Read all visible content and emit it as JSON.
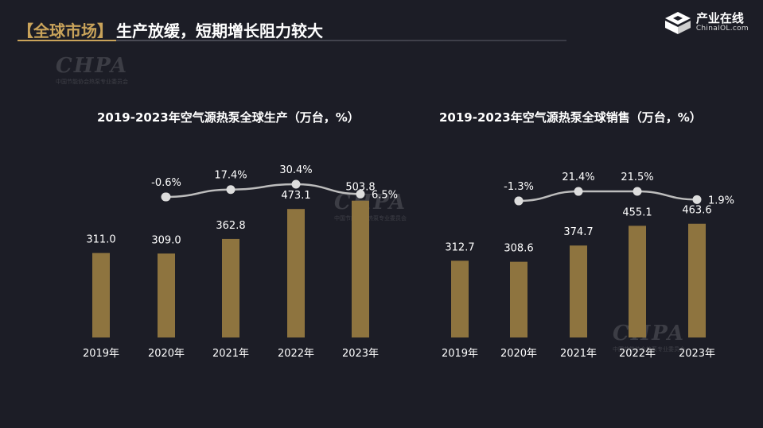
{
  "header": {
    "tag": "【全球市场】",
    "title": "生产放缓，短期增长阻力较大"
  },
  "logo": {
    "name_cn": "产业在线",
    "name_en": "ChinaIOL.com"
  },
  "watermark": {
    "big": "CHPA",
    "sub": "中国节能协会热泵专业委员会"
  },
  "colors": {
    "background": "#1c1d26",
    "bar": "#8e743f",
    "line": "#bdbdbd",
    "marker": "#dddddd",
    "accent": "#c9a35a"
  },
  "chart_data": [
    {
      "type": "bar",
      "title": "2019-2023年空气源热泵全球生产（万台，%）",
      "categories": [
        "2019年",
        "2020年",
        "2021年",
        "2022年",
        "2023年"
      ],
      "series": [
        {
          "values": [
            311.0,
            309.0,
            362.8,
            473.1,
            503.8
          ],
          "value_labels": [
            "311.0",
            "309.0",
            "362.8",
            "473.1",
            "503.8"
          ]
        },
        {
          "type": "line",
          "values": [
            null,
            -0.6,
            17.4,
            30.4,
            6.5
          ],
          "value_labels": [
            "",
            "-0.6%",
            "17.4%",
            "30.4%",
            "6.5%"
          ]
        }
      ]
    },
    {
      "type": "bar",
      "title": "2019-2023年空气源热泵全球销售（万台，%）",
      "categories": [
        "2019年",
        "2020年",
        "2021年",
        "2022年",
        "2023年"
      ],
      "series": [
        {
          "values": [
            312.7,
            308.6,
            374.7,
            455.1,
            463.6
          ],
          "value_labels": [
            "312.7",
            "308.6",
            "374.7",
            "455.1",
            "463.6"
          ]
        },
        {
          "type": "line",
          "values": [
            null,
            -1.3,
            21.4,
            21.5,
            1.9
          ],
          "value_labels": [
            "",
            "-1.3%",
            "21.4%",
            "21.5%",
            "1.9%"
          ]
        }
      ]
    }
  ]
}
